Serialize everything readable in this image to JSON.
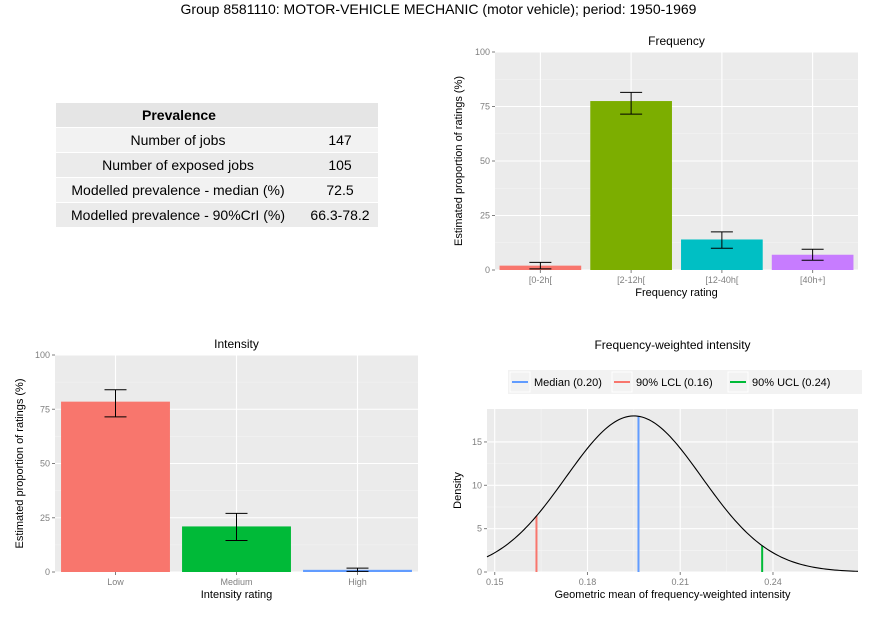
{
  "title": "Group 8581110: MOTOR-VEHICLE MECHANIC (motor vehicle); period: 1950-1969",
  "prevalence_table": {
    "header": "Prevalence",
    "rows": [
      {
        "label": "Number of jobs",
        "value": "147"
      },
      {
        "label": "Number of exposed jobs",
        "value": "105"
      },
      {
        "label": "Modelled prevalence - median (%)",
        "value": "72.5"
      },
      {
        "label": "Modelled prevalence - 90%CrI (%)",
        "value": "66.3-78.2"
      }
    ]
  },
  "colors": {
    "panel_bg": "#ebebeb",
    "grid": "#ffffff",
    "red": "#f8766d",
    "olive": "#7cae00",
    "teal": "#00bfc4",
    "purple": "#c77cff",
    "green": "#00ba38",
    "blue": "#619cff",
    "ucl_green": "#00ba38"
  },
  "chart_data": [
    {
      "type": "bar",
      "title": "Frequency",
      "xlabel": "Frequency rating",
      "ylabel": "Estimated proportion of ratings (%)",
      "ylim": [
        0,
        100
      ],
      "yticks": [
        0,
        25,
        50,
        75,
        100
      ],
      "categories": [
        "[0-2h[",
        "[2-12h[",
        "[12-40h[",
        "[40h+]"
      ],
      "values": [
        2,
        77.5,
        14,
        7
      ],
      "error_low": [
        0.5,
        71.5,
        10,
        4.5
      ],
      "error_high": [
        3.5,
        81.5,
        17.5,
        9.5
      ],
      "bar_colors": [
        "#f8766d",
        "#7cae00",
        "#00bfc4",
        "#c77cff"
      ]
    },
    {
      "type": "bar",
      "title": "Intensity",
      "xlabel": "Intensity rating",
      "ylabel": "Estimated proportion of ratings (%)",
      "ylim": [
        0,
        100
      ],
      "yticks": [
        0,
        25,
        50,
        75,
        100
      ],
      "categories": [
        "Low",
        "Medium",
        "High"
      ],
      "values": [
        78.5,
        21,
        1
      ],
      "error_low": [
        71.5,
        14.5,
        0.3
      ],
      "error_high": [
        84,
        27,
        1.8
      ],
      "bar_colors": [
        "#f8766d",
        "#00ba38",
        "#619cff"
      ]
    },
    {
      "type": "line",
      "title": "Frequency-weighted intensity",
      "xlabel": "Geometric mean of frequency-weighted intensity",
      "ylabel": "Density",
      "xlim": [
        0.1475,
        0.2675
      ],
      "ylim": [
        0,
        18.8
      ],
      "xticks": [
        0.15,
        0.18,
        0.21,
        0.24
      ],
      "xtick_labels": [
        "0.15",
        "0.18",
        "0.21",
        "0.24"
      ],
      "yticks": [
        0,
        5,
        10,
        15
      ],
      "density_curve": {
        "mean": 0.195,
        "sd": 0.022,
        "peak": 18
      },
      "vlines": [
        {
          "name": "Median (0.20)",
          "x": 0.1965,
          "color": "#619cff"
        },
        {
          "name": "90% LCL (0.16)",
          "x": 0.1635,
          "color": "#f8766d"
        },
        {
          "name": "90% UCL (0.24)",
          "x": 0.2365,
          "color": "#00ba38"
        }
      ],
      "legend_position": "top"
    }
  ]
}
